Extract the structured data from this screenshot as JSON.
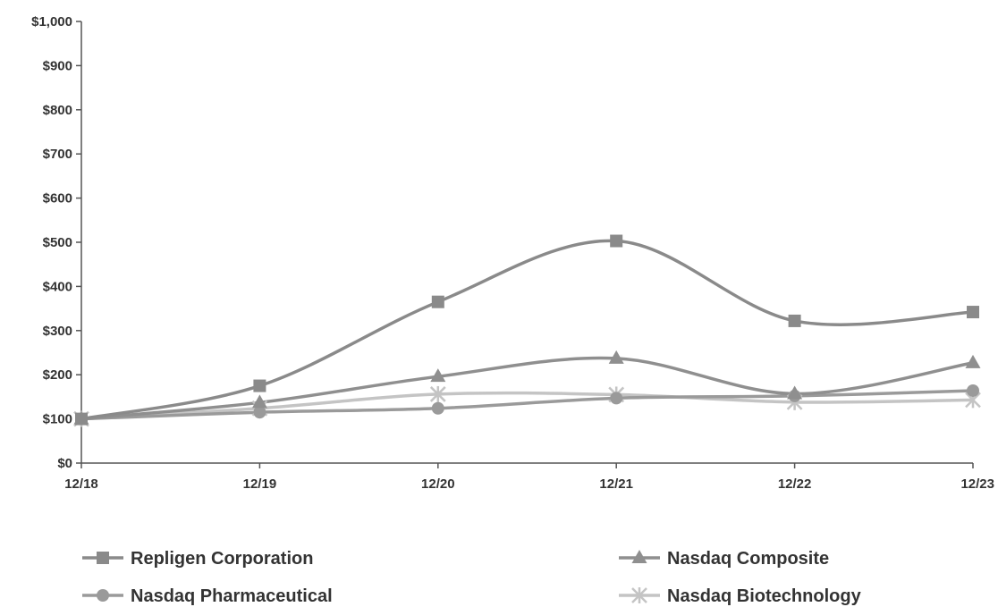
{
  "chart_data": {
    "type": "line",
    "title": "",
    "xlabel": "",
    "ylabel": "",
    "categories": [
      "12/18",
      "12/19",
      "12/20",
      "12/21",
      "12/22",
      "12/23"
    ],
    "ylim": [
      0,
      1000
    ],
    "yticks": [
      0,
      100,
      200,
      300,
      400,
      500,
      600,
      700,
      800,
      900,
      1000
    ],
    "ytick_labels": [
      "$0",
      "$100",
      "$200",
      "$300",
      "$400",
      "$500",
      "$600",
      "$700",
      "$800",
      "$900",
      "$1,000"
    ],
    "grid": false,
    "legend_position": "bottom",
    "series": [
      {
        "name": "Repligen Corporation",
        "marker": "square",
        "color": "#8a8a8a",
        "values": [
          100,
          175,
          365,
          503,
          322,
          342
        ]
      },
      {
        "name": "Nasdaq Composite",
        "marker": "triangle",
        "color": "#8f8f8f",
        "values": [
          100,
          137,
          196,
          237,
          157,
          227
        ]
      },
      {
        "name": "Nasdaq Pharmaceutical",
        "marker": "circle",
        "color": "#9a9a9a",
        "values": [
          100,
          115,
          124,
          147,
          152,
          164
        ]
      },
      {
        "name": "Nasdaq Biotechnology",
        "marker": "star",
        "color": "#c4c4c4",
        "values": [
          100,
          124,
          156,
          155,
          138,
          143
        ]
      }
    ]
  }
}
